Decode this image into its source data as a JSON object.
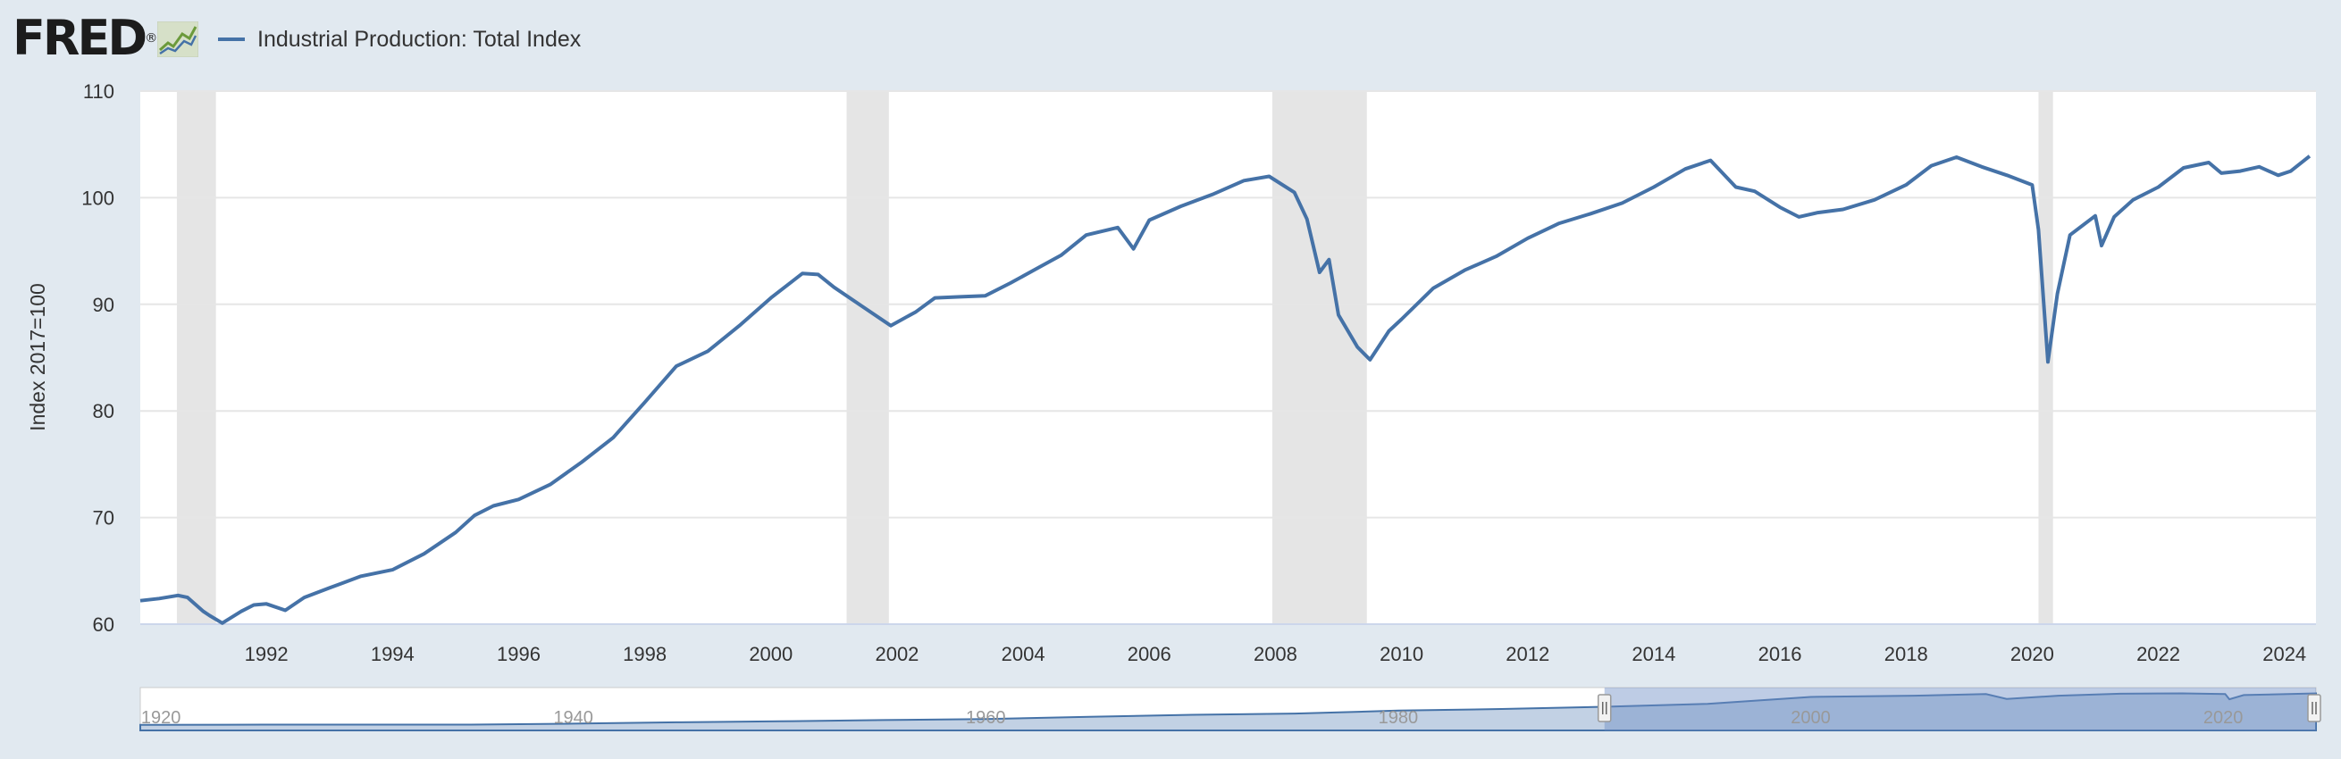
{
  "header": {
    "logo_text": "FRED",
    "logo_reg": "®",
    "legend_label": "Industrial Production: Total Index"
  },
  "colors": {
    "page_background": "#e1e9f0",
    "plot_background": "#ffffff",
    "series_line": "#4572a7",
    "recession_shade": "#e5e5e5",
    "gridline": "#e6e6e6",
    "navigator_fill": "#a8bdd8",
    "navigator_selection": "#6f8fc5"
  },
  "chart_data": {
    "type": "line",
    "title": "",
    "xlabel": "",
    "ylabel": "Index 2017=100",
    "xlim": [
      1990.0,
      2024.5
    ],
    "ylim": [
      60,
      110
    ],
    "y_ticks": [
      60,
      70,
      80,
      90,
      100,
      110
    ],
    "x_ticks": [
      1992,
      1994,
      1996,
      1998,
      2000,
      2002,
      2004,
      2006,
      2008,
      2010,
      2012,
      2014,
      2016,
      2018,
      2020,
      2022,
      2024
    ],
    "grid": "horizontal",
    "legend_position": "top-left",
    "series": [
      {
        "name": "Industrial Production: Total Index",
        "x": [
          1990.0,
          1990.3,
          1990.6,
          1990.75,
          1991.0,
          1991.1,
          1991.3,
          1991.6,
          1991.8,
          1992.0,
          1992.3,
          1992.6,
          1993.0,
          1993.5,
          1994.0,
          1994.5,
          1995.0,
          1995.3,
          1995.6,
          1996.0,
          1996.5,
          1997.0,
          1997.5,
          1998.0,
          1998.5,
          1999.0,
          1999.5,
          2000.0,
          2000.5,
          2000.75,
          2001.0,
          2001.5,
          2001.9,
          2002.3,
          2002.6,
          2003.0,
          2003.4,
          2003.8,
          2004.2,
          2004.6,
          2005.0,
          2005.5,
          2005.75,
          2006.0,
          2006.5,
          2007.0,
          2007.5,
          2007.9,
          2008.3,
          2008.5,
          2008.7,
          2008.85,
          2009.0,
          2009.3,
          2009.5,
          2009.8,
          2010.0,
          2010.5,
          2011.0,
          2011.5,
          2012.0,
          2012.5,
          2013.0,
          2013.5,
          2014.0,
          2014.5,
          2014.9,
          2015.3,
          2015.6,
          2016.0,
          2016.3,
          2016.6,
          2017.0,
          2017.5,
          2018.0,
          2018.4,
          2018.8,
          2019.2,
          2019.6,
          2020.0,
          2020.1,
          2020.25,
          2020.4,
          2020.6,
          2021.0,
          2021.1,
          2021.3,
          2021.6,
          2022.0,
          2022.4,
          2022.8,
          2023.0,
          2023.3,
          2023.6,
          2023.9,
          2024.1,
          2024.4
        ],
        "values": [
          62.2,
          62.4,
          62.7,
          62.5,
          61.2,
          60.8,
          60.1,
          61.2,
          61.8,
          61.9,
          61.3,
          62.5,
          63.4,
          64.5,
          65.1,
          66.6,
          68.6,
          70.2,
          71.1,
          71.7,
          73.1,
          75.2,
          77.5,
          80.8,
          84.2,
          85.6,
          88.0,
          90.6,
          92.9,
          92.8,
          91.6,
          89.6,
          88.0,
          89.3,
          90.6,
          90.7,
          90.8,
          92.0,
          93.3,
          94.6,
          96.5,
          97.2,
          95.2,
          97.9,
          99.2,
          100.3,
          101.6,
          102.0,
          100.5,
          98.0,
          93.0,
          94.2,
          89.0,
          86.0,
          84.8,
          87.5,
          88.6,
          91.5,
          93.2,
          94.5,
          96.2,
          97.6,
          98.5,
          99.5,
          101.0,
          102.7,
          103.5,
          101.0,
          100.6,
          99.1,
          98.2,
          98.6,
          98.9,
          99.8,
          101.2,
          103.0,
          103.8,
          102.9,
          102.1,
          101.2,
          97.0,
          84.6,
          91.0,
          96.5,
          98.3,
          95.5,
          98.2,
          99.8,
          101.0,
          102.8,
          103.3,
          102.3,
          102.5,
          102.9,
          102.1,
          102.5,
          103.9
        ]
      }
    ],
    "recessions": [
      [
        1990.58,
        1991.2
      ],
      [
        2001.2,
        2001.87
      ],
      [
        2007.95,
        2009.45
      ],
      [
        2020.1,
        2020.33
      ]
    ],
    "navigator": {
      "labels": [
        "1920",
        "1940",
        "1960",
        "1980",
        "2000",
        "2020"
      ],
      "label_years": [
        1920,
        1940,
        1960,
        1980,
        2000,
        2020
      ],
      "range": [
        1919,
        2024.5
      ],
      "selection": [
        1990,
        2024.5
      ],
      "series_x": [
        1919,
        1925,
        1930,
        1935,
        1940,
        1945,
        1950,
        1955,
        1960,
        1965,
        1970,
        1975,
        1980,
        1985,
        1990,
        1995,
        2000,
        2005,
        2008.5,
        2009.5,
        2012,
        2015,
        2018,
        2020.1,
        2020.3,
        2021,
        2024.5
      ],
      "series_values": [
        6,
        7,
        7,
        7,
        10,
        14,
        17,
        21,
        24,
        31,
        37,
        41,
        50,
        55,
        62,
        71,
        92,
        96,
        101,
        86,
        96,
        102,
        103,
        101,
        85,
        98,
        103
      ]
    }
  }
}
